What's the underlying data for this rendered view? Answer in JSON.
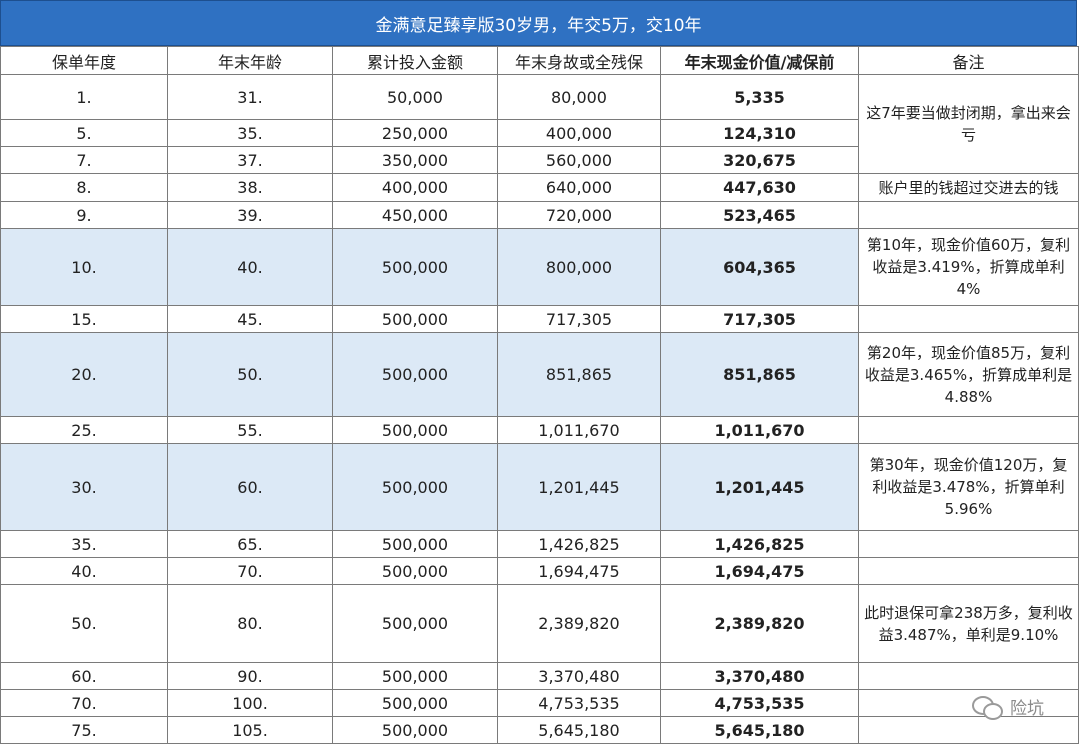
{
  "title": "金满意足臻享版30岁男，年交5万，交10年",
  "headers": [
    "保单年度",
    "年末年龄",
    "累计投入金额",
    "年末身故或全残保",
    "年末现金价值/减保前",
    "备注"
  ],
  "rows": [
    {
      "year": "1.",
      "age": "31.",
      "paid": "50,000",
      "death": "80,000",
      "cash": "5,335"
    },
    {
      "year": "5.",
      "age": "35.",
      "paid": "250,000",
      "death": "400,000",
      "cash": "124,310"
    },
    {
      "year": "7.",
      "age": "37.",
      "paid": "350,000",
      "death": "560,000",
      "cash": "320,675"
    },
    {
      "year": "8.",
      "age": "38.",
      "paid": "400,000",
      "death": "640,000",
      "cash": "447,630"
    },
    {
      "year": "9.",
      "age": "39.",
      "paid": "450,000",
      "death": "720,000",
      "cash": "523,465"
    },
    {
      "year": "10.",
      "age": "40.",
      "paid": "500,000",
      "death": "800,000",
      "cash": "604,365"
    },
    {
      "year": "15.",
      "age": "45.",
      "paid": "500,000",
      "death": "717,305",
      "cash": "717,305"
    },
    {
      "year": "20.",
      "age": "50.",
      "paid": "500,000",
      "death": "851,865",
      "cash": "851,865"
    },
    {
      "year": "25.",
      "age": "55.",
      "paid": "500,000",
      "death": "1,011,670",
      "cash": "1,011,670"
    },
    {
      "year": "30.",
      "age": "60.",
      "paid": "500,000",
      "death": "1,201,445",
      "cash": "1,201,445"
    },
    {
      "year": "35.",
      "age": "65.",
      "paid": "500,000",
      "death": "1,426,825",
      "cash": "1,426,825"
    },
    {
      "year": "40.",
      "age": "70.",
      "paid": "500,000",
      "death": "1,694,475",
      "cash": "1,694,475"
    },
    {
      "year": "50.",
      "age": "80.",
      "paid": "500,000",
      "death": "2,389,820",
      "cash": "2,389,820"
    },
    {
      "year": "60.",
      "age": "90.",
      "paid": "500,000",
      "death": "3,370,480",
      "cash": "3,370,480"
    },
    {
      "year": "70.",
      "age": "100.",
      "paid": "500,000",
      "death": "4,753,535",
      "cash": "4,753,535"
    },
    {
      "year": "75.",
      "age": "105.",
      "paid": "500,000",
      "death": "5,645,180",
      "cash": "5,645,180"
    }
  ],
  "notes": {
    "closed_period": "这7年要当做封闭期，拿出来会亏",
    "account_over": "账户里的钱超过交进去的钱",
    "year10": "第10年，现金价值60万，复利收益是3.419%，折算成单利4%",
    "year20": "第20年，现金价值85万，复利收益是3.465%，折算成单利是4.88%",
    "year30": "第30年，现金价值120万，复利收益是3.478%，折算单利5.96%",
    "year50": "此时退保可拿238万多，复利收益3.487%，单利是9.10%"
  },
  "watermark": "险坑",
  "colors": {
    "title_bg": "#2f71c2",
    "highlight_bg": "#dce9f6"
  }
}
